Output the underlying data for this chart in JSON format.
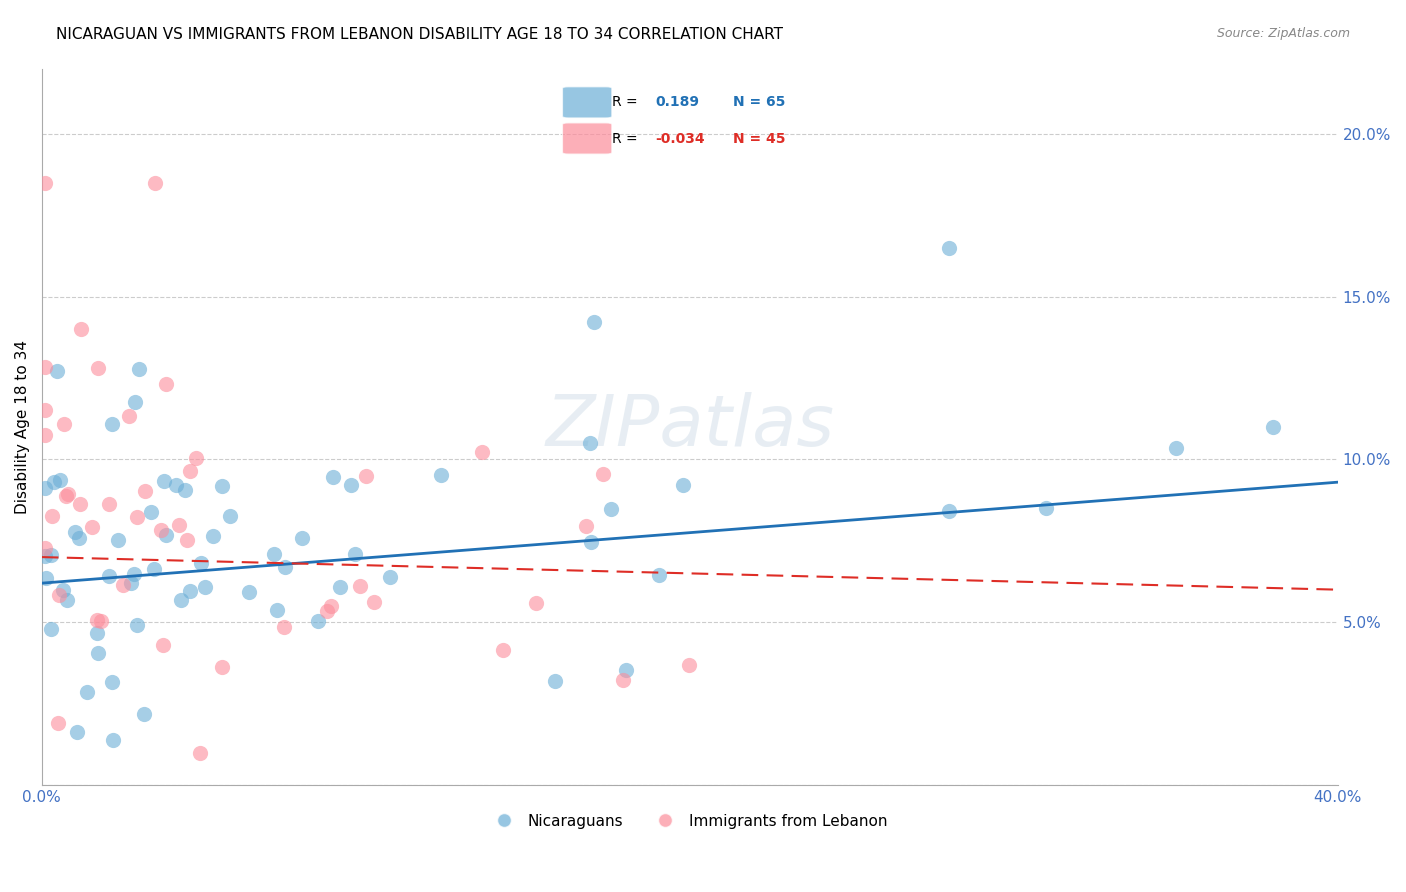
{
  "title": "NICARAGUAN VS IMMIGRANTS FROM LEBANON DISABILITY AGE 18 TO 34 CORRELATION CHART",
  "source": "Source: ZipAtlas.com",
  "ylabel": "Disability Age 18 to 34",
  "xlim": [
    0.0,
    0.4
  ],
  "ylim": [
    0.0,
    0.22
  ],
  "blue_R": 0.189,
  "blue_N": 65,
  "pink_R": -0.034,
  "pink_N": 45,
  "blue_color": "#6baed6",
  "pink_color": "#fc8d9b",
  "blue_line_color": "#2171b5",
  "pink_line_color": "#de2d26",
  "legend_label_blue": "Nicaraguans",
  "legend_label_pink": "Immigrants from Lebanon",
  "watermark": "ZIPatlas",
  "blue_line_y0": 0.062,
  "blue_line_y1": 0.093,
  "pink_line_y0": 0.07,
  "pink_line_y1": 0.06
}
